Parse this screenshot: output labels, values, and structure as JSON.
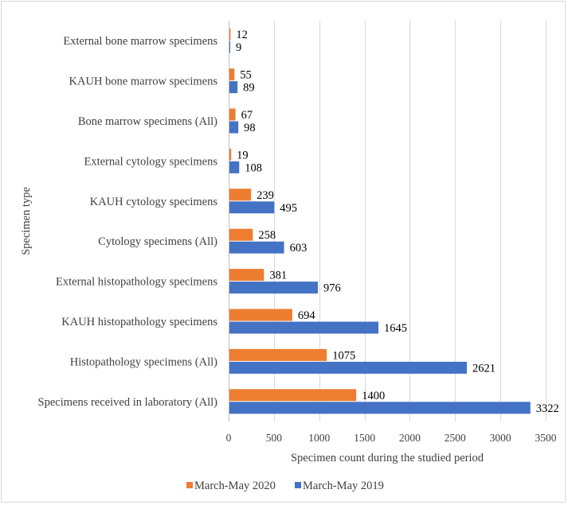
{
  "chart_data": {
    "type": "bar",
    "orientation": "horizontal",
    "title": "",
    "xlabel": "Specimen count during the studied period",
    "ylabel": "Specimen type",
    "xlim": [
      0,
      3500
    ],
    "xticks": [
      0,
      500,
      1000,
      1500,
      2000,
      2500,
      3000,
      3500
    ],
    "grid": true,
    "legend_position": "bottom",
    "categories": [
      "External bone marrow specimens",
      "KAUH bone marrow specimens",
      "Bone marrow specimens (All)",
      "External cytology specimens",
      "KAUH cytology specimens",
      "Cytology specimens (All)",
      "External histopathology specimens",
      "KAUH histopathology specimens",
      "Histopathology specimens (All)",
      "Specimens received in laboratory (All)"
    ],
    "series": [
      {
        "name": "March-May 2020",
        "color": "#ED7D31",
        "values": [
          12,
          55,
          67,
          19,
          239,
          258,
          381,
          694,
          1075,
          1400
        ]
      },
      {
        "name": "March-May 2019",
        "color": "#4472C4",
        "values": [
          9,
          89,
          98,
          108,
          495,
          603,
          976,
          1645,
          2621,
          3322
        ]
      }
    ]
  }
}
